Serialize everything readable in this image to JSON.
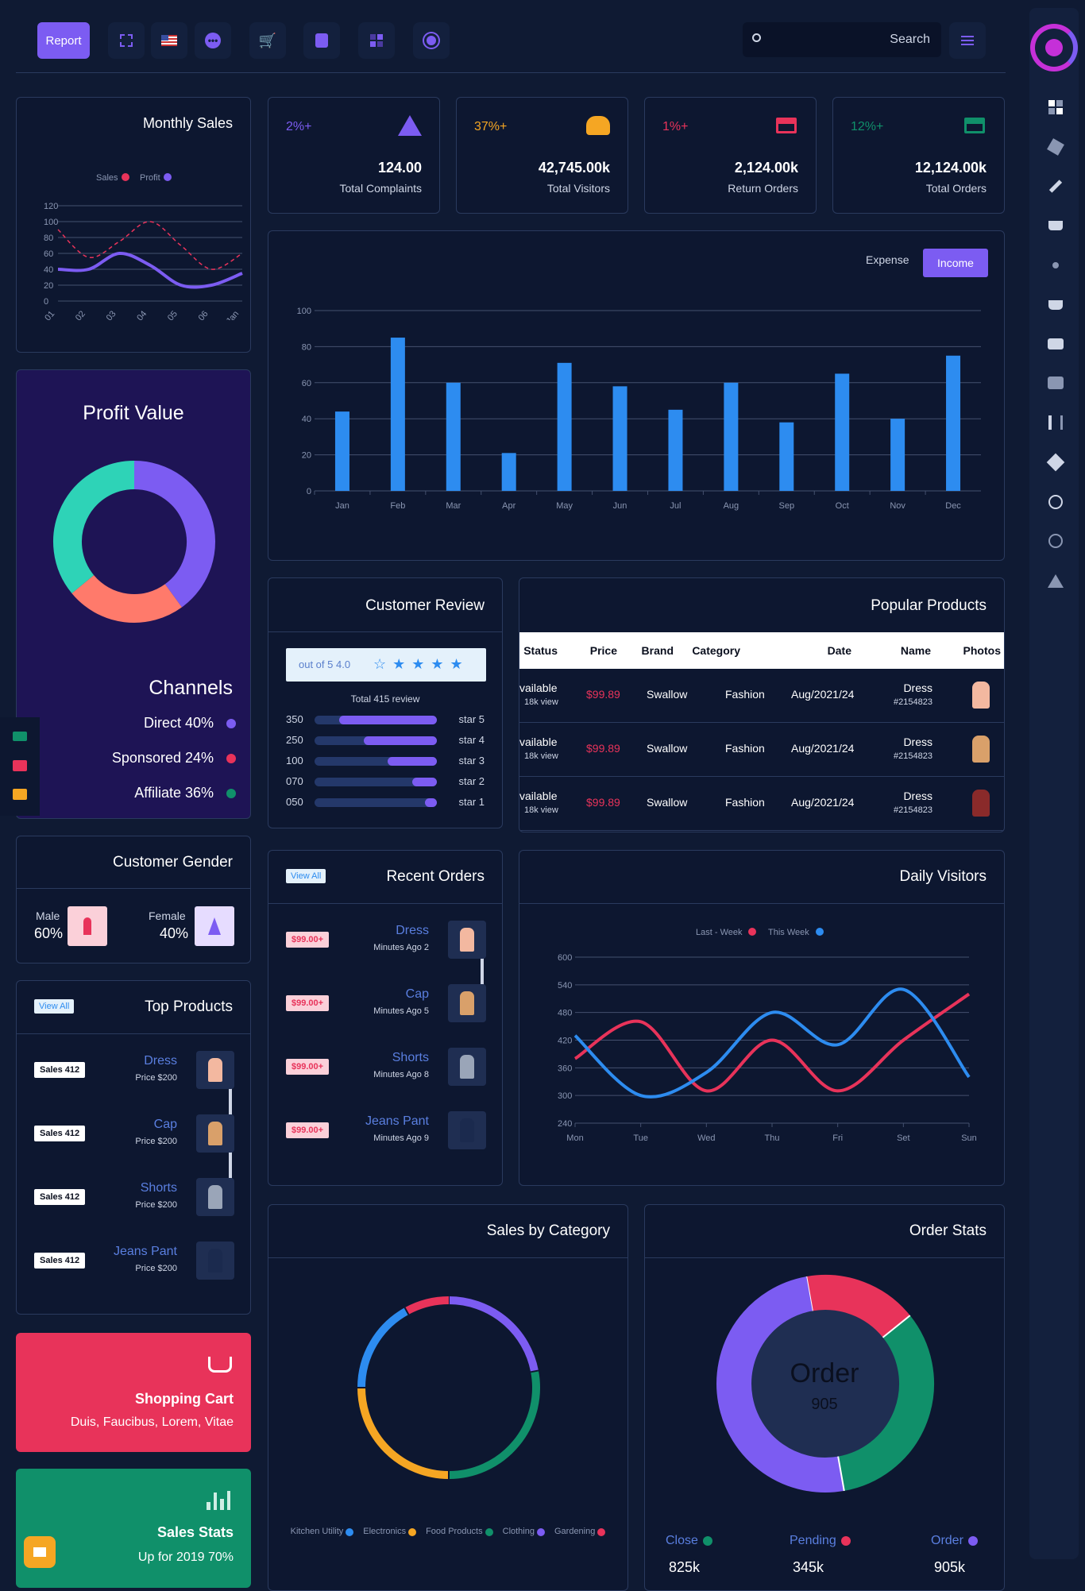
{
  "topbar": {
    "report_label": "Report",
    "search_label": "Search"
  },
  "monthly_sales": {
    "title": "Monthly Sales",
    "legend": [
      "Sales",
      "Profit"
    ],
    "chart_data": {
      "type": "line",
      "x": [
        "Jan 01",
        "Jan 02",
        "Jan 03",
        "Jan 04",
        "Jan 05",
        "Jan 06",
        "Jan 07"
      ],
      "series": [
        {
          "name": "Sales",
          "values": [
            90,
            55,
            75,
            100,
            70,
            40,
            60
          ]
        },
        {
          "name": "Profit",
          "values": [
            40,
            40,
            60,
            45,
            20,
            20,
            35
          ]
        }
      ],
      "ylim": [
        0,
        120
      ],
      "yticks": [
        "0",
        "20",
        "40",
        "60",
        "80",
        "100",
        "120"
      ],
      "xticks": [
        "Jan 01",
        "Jan 02",
        "Jan 03",
        "Jan 04",
        "Jan 05",
        "Jan 06",
        "Jan"
      ]
    }
  },
  "stats": [
    {
      "pct": "2%+",
      "value": "124.00",
      "label": "Total Complaints",
      "color": "#7c5cf2"
    },
    {
      "pct": "37%+",
      "value": "42,745.00k",
      "label": "Total Visitors",
      "color": "#f5a623"
    },
    {
      "pct": "1%+",
      "value": "2,124.00k",
      "label": "Return Orders",
      "color": "#e8335a"
    },
    {
      "pct": "12%+",
      "value": "12,124.00k",
      "label": "Total Orders",
      "color": "#10906a"
    }
  ],
  "income_chart": {
    "expense_label": "Expense",
    "income_label": "Income",
    "chart_data": {
      "type": "bar",
      "categories": [
        "Jan",
        "Feb",
        "Mar",
        "Apr",
        "May",
        "Jun",
        "Jul",
        "Aug",
        "Sep",
        "Oct",
        "Nov",
        "Dec"
      ],
      "values": [
        44,
        85,
        60,
        21,
        71,
        58,
        45,
        60,
        38,
        65,
        40,
        75
      ],
      "ylim": [
        0,
        100
      ],
      "yticks": [
        "0",
        "20",
        "40",
        "60",
        "80",
        "100"
      ]
    }
  },
  "profit_value": {
    "title": "Profit Value",
    "channels_title": "Channels",
    "channels": [
      {
        "label": "Direct 40%",
        "value": 40,
        "color": "#7c5cf2"
      },
      {
        "label": "Sponsored 24%",
        "value": 24,
        "color": "#e8335a"
      },
      {
        "label": "Affiliate 36%",
        "value": 36,
        "color": "#10906a"
      }
    ],
    "chart_data": {
      "type": "pie",
      "slices": [
        {
          "value": 40,
          "color": "#7c5cf2"
        },
        {
          "value": 24,
          "color": "#ff7a6b"
        },
        {
          "value": 36,
          "color": "#2ed3b7"
        }
      ]
    }
  },
  "customer_review": {
    "title": "Customer Review",
    "rating_text": "out of 5 4.0",
    "total_text": "Total 415 review",
    "rows": [
      {
        "count": "350",
        "label": "star 5",
        "fill": 0.8
      },
      {
        "count": "250",
        "label": "star 4",
        "fill": 0.6
      },
      {
        "count": "100",
        "label": "star 3",
        "fill": 0.4
      },
      {
        "count": "070",
        "label": "star 2",
        "fill": 0.2
      },
      {
        "count": "050",
        "label": "star 1",
        "fill": 0.1
      }
    ]
  },
  "popular_products": {
    "title": "Popular Products",
    "columns": [
      "Status",
      "Price",
      "Brand",
      "Category",
      "Date",
      "Name",
      "Photos"
    ],
    "rows": [
      {
        "status": "vailable",
        "views": "18k view",
        "price": "$99.89",
        "brand": "Swallow",
        "category": "Fashion",
        "date": "Aug/2021/24",
        "name": "Dress",
        "id": "#2154823"
      },
      {
        "status": "vailable",
        "views": "18k view",
        "price": "$99.89",
        "brand": "Swallow",
        "category": "Fashion",
        "date": "Aug/2021/24",
        "name": "Dress",
        "id": "#2154823"
      },
      {
        "status": "vailable",
        "views": "18k view",
        "price": "$99.89",
        "brand": "Swallow",
        "category": "Fashion",
        "date": "Aug/2021/24",
        "name": "Dress",
        "id": "#2154823"
      }
    ]
  },
  "customer_gender": {
    "title": "Customer Gender",
    "male_label": "Male",
    "male_pct": "60%",
    "female_label": "Female",
    "female_pct": "40%"
  },
  "recent_orders": {
    "title": "Recent Orders",
    "view_all": "View All",
    "items": [
      {
        "price": "$99.00+",
        "name": "Dress",
        "time": "Minutes Ago 2"
      },
      {
        "price": "$99.00+",
        "name": "Cap",
        "time": "Minutes Ago 5"
      },
      {
        "price": "$99.00+",
        "name": "Shorts",
        "time": "Minutes Ago 8"
      },
      {
        "price": "$99.00+",
        "name": "Jeans Pant",
        "time": "Minutes Ago 9"
      }
    ]
  },
  "daily_visitors": {
    "title": "Daily Visitors",
    "legend": [
      "Last - Week",
      "This Week"
    ],
    "chart_data": {
      "type": "line",
      "x": [
        "Mon",
        "Tue",
        "Wed",
        "Thu",
        "Fri",
        "Set",
        "Sun"
      ],
      "series": [
        {
          "name": "Last - Week",
          "values": [
            380,
            460,
            310,
            420,
            310,
            420,
            520
          ]
        },
        {
          "name": "This Week",
          "values": [
            430,
            300,
            350,
            480,
            410,
            530,
            340
          ]
        }
      ],
      "ylim": [
        240,
        600
      ],
      "yticks": [
        "240",
        "300",
        "360",
        "420",
        "480",
        "540",
        "600"
      ]
    }
  },
  "top_products": {
    "title": "Top Products",
    "view_all": "View All",
    "items": [
      {
        "sales": "Sales 412",
        "name": "Dress",
        "price": "Price $200"
      },
      {
        "sales": "Sales 412",
        "name": "Cap",
        "price": "Price $200"
      },
      {
        "sales": "Sales 412",
        "name": "Shorts",
        "price": "Price $200"
      },
      {
        "sales": "Sales 412",
        "name": "Jeans Pant",
        "price": "Price $200"
      }
    ]
  },
  "sales_by_category": {
    "title": "Sales by Category",
    "legend": [
      {
        "label": "Kitchen Utility",
        "color": "#2d8cf0"
      },
      {
        "label": "Electronics",
        "color": "#f5a623"
      },
      {
        "label": "Food Products",
        "color": "#10906a"
      },
      {
        "label": "Clothing",
        "color": "#7c5cf2"
      },
      {
        "label": "Gardening",
        "color": "#e8335a"
      }
    ],
    "chart_data": {
      "type": "pie",
      "slices": [
        {
          "label": "Clothing",
          "value": 22,
          "color": "#7c5cf2"
        },
        {
          "label": "Food Products",
          "value": 28,
          "color": "#10906a"
        },
        {
          "label": "Electronics",
          "value": 25,
          "color": "#f5a623"
        },
        {
          "label": "Kitchen Utility",
          "value": 17,
          "color": "#2d8cf0"
        },
        {
          "label": "Gardening",
          "value": 8,
          "color": "#e8335a"
        }
      ]
    }
  },
  "order_stats": {
    "title": "Order Stats",
    "center_title": "Order",
    "center_value": "905",
    "legend": [
      {
        "label": "Close",
        "value": "825k",
        "color": "#10906a"
      },
      {
        "label": "Pending",
        "value": "345k",
        "color": "#e8335a"
      },
      {
        "label": "Order",
        "value": "905k",
        "color": "#7c5cf2"
      }
    ],
    "chart_data": {
      "type": "pie",
      "slices": [
        {
          "label": "Pending",
          "value": 17,
          "color": "#e8335a"
        },
        {
          "label": "Close",
          "value": 33,
          "color": "#10906a"
        },
        {
          "label": "Order",
          "value": 50,
          "color": "#7c5cf2"
        }
      ]
    }
  },
  "shopping_cart": {
    "title": "Shopping Cart",
    "subtitle": "Duis, Faucibus, Lorem, Vitae"
  },
  "sales_stats": {
    "title": "Sales Stats",
    "subtitle": "Up for 2019 70%"
  }
}
